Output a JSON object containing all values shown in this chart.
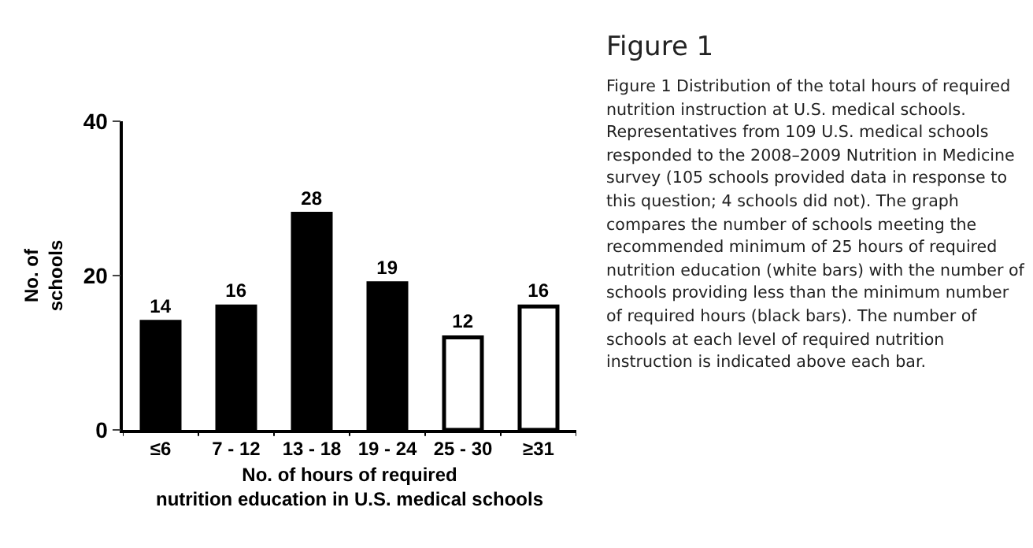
{
  "chart_data": {
    "type": "bar",
    "title": "Figure 1",
    "xlabel": "No. of hours of required nutrition education in U.S. medical schools",
    "ylabel": "No. of schools",
    "categories": [
      "≤6",
      "7 - 12",
      "13 - 18",
      "19 - 24",
      "25 - 30",
      "≥31"
    ],
    "values": [
      14,
      16,
      28,
      19,
      12,
      16
    ],
    "colors": [
      "#000000",
      "#000000",
      "#000000",
      "#000000",
      "#ffffff",
      "#ffffff"
    ],
    "ylim": [
      0,
      40
    ],
    "yticks": [
      0,
      20,
      40
    ],
    "data_labels": true,
    "grid": false,
    "annotations": [
      "Figure 1 Distribution of the total hours of required nutrition instruction at U.S. medical schools. Representatives from 109 U.S. medical schools responded to the 2008–2009 Nutrition in Medicine survey (105 schools provided data in response to this question; 4 schools did not). The graph compares the number of schools meeting the recommended minimum of 25 hours of required nutrition education (white bars) with the number of schools providing less than the minimum number of required hours (black bars). The number of schools at each level of required nutrition instruction is indicated above each bar."
    ]
  }
}
